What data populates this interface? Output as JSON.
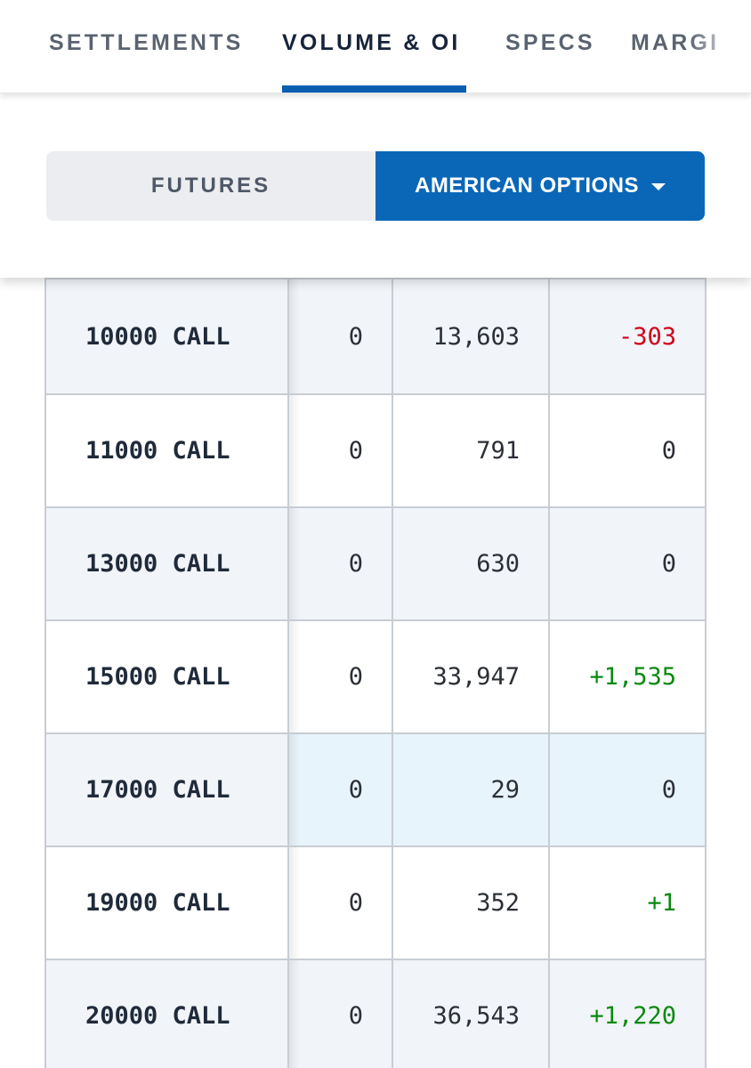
{
  "tabs": [
    {
      "label": "SETTLEMENTS",
      "active": false
    },
    {
      "label": "VOLUME & OI",
      "active": true
    },
    {
      "label": "SPECS",
      "active": false
    },
    {
      "label": "MARGI",
      "active": false
    }
  ],
  "product_toggle": {
    "futures_label": "FUTURES",
    "options_label": "AMERICAN OPTIONS",
    "selected": "AMERICAN OPTIONS",
    "options_icon": "caret-down-icon"
  },
  "colors": {
    "accent": "#0a67b8",
    "negative": "#d0021b",
    "positive": "#0a8a10",
    "highlight_row": "#e8f4fb"
  },
  "rows": [
    {
      "strike": "10000 CALL",
      "volume": "0",
      "open_interest": "13,603",
      "change": "-303"
    },
    {
      "strike": "11000 CALL",
      "volume": "0",
      "open_interest": "791",
      "change": "0"
    },
    {
      "strike": "13000 CALL",
      "volume": "0",
      "open_interest": "630",
      "change": "0"
    },
    {
      "strike": "15000 CALL",
      "volume": "0",
      "open_interest": "33,947",
      "change": "+1,535"
    },
    {
      "strike": "17000 CALL",
      "volume": "0",
      "open_interest": "29",
      "change": "0",
      "highlighted": true
    },
    {
      "strike": "19000 CALL",
      "volume": "0",
      "open_interest": "352",
      "change": "+1"
    },
    {
      "strike": "20000 CALL",
      "volume": "0",
      "open_interest": "36,543",
      "change": "+1,220"
    }
  ]
}
